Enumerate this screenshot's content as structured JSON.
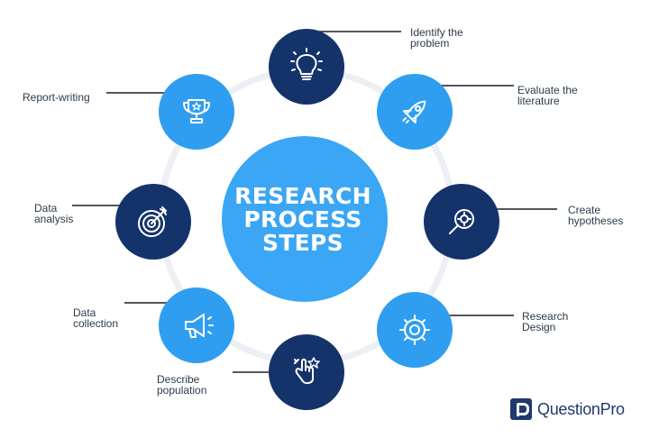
{
  "center": {
    "line1": "RESEARCH",
    "line2": "PROCESS",
    "line3": "STEPS"
  },
  "steps": [
    {
      "line1": "Identify the",
      "line2": "problem",
      "icon": "lightbulb-icon"
    },
    {
      "line1": "Evaluate the",
      "line2": "literature",
      "icon": "rocket-icon"
    },
    {
      "line1": "Create",
      "line2": "hypotheses",
      "icon": "magnifier-target-icon"
    },
    {
      "line1": "Research",
      "line2": "Design",
      "icon": "gear-icon"
    },
    {
      "line1": "Describe",
      "line2": "population",
      "icon": "hand-stars-icon"
    },
    {
      "line1": "Data",
      "line2": "collection",
      "icon": "megaphone-icon"
    },
    {
      "line1": "Data",
      "line2": "analysis",
      "icon": "target-icon"
    },
    {
      "line1": "Report-writing",
      "line2": "",
      "icon": "trophy-icon"
    }
  ],
  "colors": {
    "dark": "#14336b",
    "light": "#2f9ef0",
    "center": "#3aa6f5",
    "ring": "#e9edf2",
    "line": "#1a1f2b"
  },
  "logo": {
    "text": "QuestionPro"
  }
}
